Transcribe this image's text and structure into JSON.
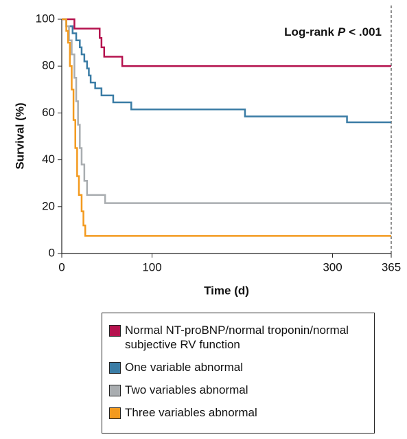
{
  "chart_data": {
    "type": "step",
    "annotation": [
      "Log-rank",
      "P",
      "< .001"
    ],
    "x_label": "Time (d)",
    "y_label": "Survival (%)",
    "xlim": [
      0,
      365
    ],
    "xticks": [
      0,
      100,
      300,
      365
    ],
    "ylim": [
      0,
      100
    ],
    "yticks": [
      0,
      20,
      40,
      60,
      80,
      100
    ],
    "grid": false,
    "series": [
      {
        "name": "Normal NT-proBNP/normal troponin/normal subjective RV function",
        "color": "#b5124e",
        "x": [
          0,
          14,
          42,
          44,
          47,
          67,
          365
        ],
        "values": [
          100,
          96,
          92,
          88,
          84,
          80,
          80
        ]
      },
      {
        "name": "One variable abnormal",
        "color": "#3a7ca5",
        "x": [
          0,
          5,
          12,
          16,
          20,
          22,
          25,
          28,
          30,
          32,
          37,
          44,
          57,
          77,
          203,
          316,
          365
        ],
        "values": [
          100,
          97,
          94,
          91,
          88,
          85,
          82,
          79,
          76,
          73,
          70.5,
          67.5,
          64.5,
          61.5,
          58.5,
          56,
          56
        ]
      },
      {
        "name": "Two variables abnormal",
        "color": "#a9adb0",
        "x": [
          0,
          5,
          8,
          11,
          14,
          16,
          18,
          20,
          22,
          25,
          28,
          48,
          365
        ],
        "values": [
          100,
          97,
          91,
          85,
          75,
          65,
          55,
          45,
          38,
          31,
          25,
          21.5,
          21.5
        ]
      },
      {
        "name": "Three variables abnormal",
        "color": "#f39a1e",
        "x": [
          0,
          5,
          7,
          9,
          11,
          13,
          15,
          17,
          19,
          22,
          24,
          26,
          365
        ],
        "values": [
          100,
          95,
          90,
          80,
          70,
          57,
          45,
          33,
          25,
          18,
          12,
          7.5,
          7.5
        ]
      }
    ]
  }
}
